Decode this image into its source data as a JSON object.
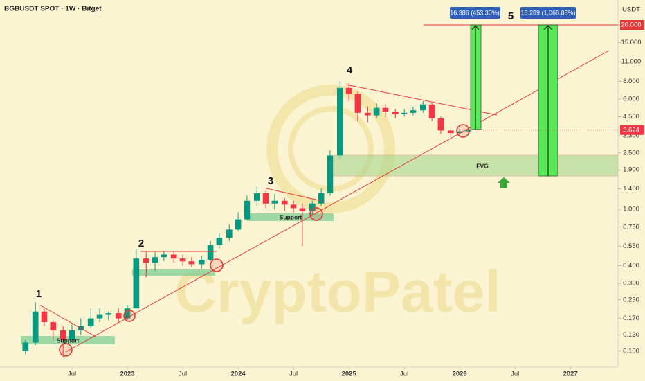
{
  "chart_data": {
    "type": "candlestick",
    "title": "BGBUSDT SPOT · 1W · Bitget",
    "y_axis_unit": "USDT",
    "log_scale": true,
    "up_color": "#089981",
    "down_color": "#f23645",
    "xlim": [
      2021.85,
      2027.43
    ],
    "xticks": [
      {
        "value": 2022.5,
        "label": "Jul"
      },
      {
        "value": 2023,
        "label": "2023"
      },
      {
        "value": 2023.5,
        "label": "Jul"
      },
      {
        "value": 2024,
        "label": "2024"
      },
      {
        "value": 2024.5,
        "label": "Jul"
      },
      {
        "value": 2025,
        "label": "2025"
      },
      {
        "value": 2025.5,
        "label": "Jul"
      },
      {
        "value": 2026,
        "label": "2026"
      },
      {
        "value": 2026.5,
        "label": "Jul"
      },
      {
        "value": 2027,
        "label": "2027"
      }
    ],
    "ylim": [
      0.077,
      30
    ],
    "yticks": [
      {
        "value": 20,
        "label": "20.000"
      },
      {
        "value": 15,
        "label": "15.000"
      },
      {
        "value": 11,
        "label": "11.000"
      },
      {
        "value": 8,
        "label": "8.000"
      },
      {
        "value": 6,
        "label": "6.000"
      },
      {
        "value": 4.5,
        "label": "4.500"
      },
      {
        "value": 3.3,
        "label": "3.300"
      },
      {
        "value": 2.5,
        "label": "2.500"
      },
      {
        "value": 1.9,
        "label": "1.900"
      },
      {
        "value": 1.4,
        "label": "1.400"
      },
      {
        "value": 1,
        "label": "1.000"
      },
      {
        "value": 0.75,
        "label": "0.750"
      },
      {
        "value": 0.55,
        "label": "0.550"
      },
      {
        "value": 0.4,
        "label": "0.400"
      },
      {
        "value": 0.3,
        "label": "0.300"
      },
      {
        "value": 0.23,
        "label": "0.230"
      },
      {
        "value": 0.17,
        "label": "0.170"
      },
      {
        "value": 0.13,
        "label": "0.130"
      },
      {
        "value": 0.1,
        "label": "0.100"
      }
    ],
    "x": [
      2022.08,
      2022.17,
      2022.25,
      2022.33,
      2022.42,
      2022.5,
      2022.58,
      2022.67,
      2022.75,
      2022.83,
      2022.92,
      2023.0,
      2023.08,
      2023.17,
      2023.25,
      2023.33,
      2023.42,
      2023.5,
      2023.58,
      2023.67,
      2023.75,
      2023.83,
      2023.92,
      2024.0,
      2024.08,
      2024.17,
      2024.25,
      2024.33,
      2024.42,
      2024.5,
      2024.58,
      2024.67,
      2024.75,
      2024.83,
      2024.92,
      2025.0,
      2025.08,
      2025.17,
      2025.25,
      2025.33,
      2025.42,
      2025.5,
      2025.58,
      2025.67,
      2025.75,
      2025.83,
      2025.92,
      2026.0,
      2026.08
    ],
    "open": [
      0.1,
      0.115,
      0.19,
      0.16,
      0.14,
      0.12,
      0.14,
      0.15,
      0.17,
      0.18,
      0.185,
      0.17,
      0.2,
      0.45,
      0.42,
      0.46,
      0.48,
      0.45,
      0.43,
      0.41,
      0.44,
      0.56,
      0.63,
      0.72,
      0.85,
      1.15,
      1.3,
      1.1,
      1.15,
      1.08,
      1.02,
      0.98,
      1.1,
      1.3,
      2.4,
      7.2,
      6.5,
      4.8,
      4.6,
      5.2,
      4.9,
      4.7,
      4.8,
      5.0,
      5.5,
      4.4,
      3.6,
      3.45,
      3.55
    ],
    "high": [
      0.12,
      0.22,
      0.2,
      0.165,
      0.15,
      0.155,
      0.17,
      0.2,
      0.2,
      0.19,
      0.2,
      0.21,
      0.52,
      0.5,
      0.5,
      0.51,
      0.5,
      0.48,
      0.46,
      0.47,
      0.6,
      0.68,
      0.78,
      0.95,
      1.25,
      1.45,
      1.35,
      1.28,
      1.2,
      1.15,
      1.1,
      1.15,
      1.4,
      2.6,
      8.0,
      7.8,
      6.8,
      5.3,
      5.6,
      5.5,
      5.1,
      5.1,
      5.3,
      5.8,
      5.6,
      4.5,
      3.7,
      3.7,
      3.8
    ],
    "low": [
      0.095,
      0.11,
      0.15,
      0.12,
      0.09,
      0.115,
      0.13,
      0.145,
      0.16,
      0.165,
      0.16,
      0.165,
      0.2,
      0.33,
      0.37,
      0.43,
      0.42,
      0.4,
      0.39,
      0.38,
      0.43,
      0.53,
      0.6,
      0.7,
      0.84,
      1.05,
      1.02,
      1.0,
      0.98,
      0.95,
      0.55,
      0.92,
      1.05,
      1.25,
      2.3,
      5.8,
      4.2,
      4.1,
      4.4,
      4.5,
      4.4,
      4.5,
      4.6,
      4.8,
      4.2,
      3.4,
      3.3,
      3.35,
      3.45
    ],
    "close": [
      0.115,
      0.19,
      0.16,
      0.14,
      0.12,
      0.14,
      0.15,
      0.17,
      0.18,
      0.185,
      0.17,
      0.2,
      0.45,
      0.42,
      0.46,
      0.48,
      0.45,
      0.43,
      0.41,
      0.44,
      0.56,
      0.63,
      0.72,
      0.85,
      1.15,
      1.3,
      1.1,
      1.15,
      1.08,
      1.02,
      0.98,
      1.1,
      1.3,
      2.4,
      7.2,
      6.5,
      4.8,
      4.6,
      5.2,
      4.9,
      4.7,
      4.8,
      5.0,
      5.5,
      4.4,
      3.6,
      3.45,
      3.55,
      3.624
    ],
    "last_price": 3.624,
    "wave_labels": [
      "1",
      "2",
      "3",
      "4",
      "5"
    ],
    "support_label_1": "Support",
    "support_label_2": "Support",
    "fvg_label": "FVG",
    "target_label_1": "16.386 (453.30%)",
    "target_label_2": "18.289 (1,068.85%)",
    "watermark": "CryptoPatel"
  }
}
